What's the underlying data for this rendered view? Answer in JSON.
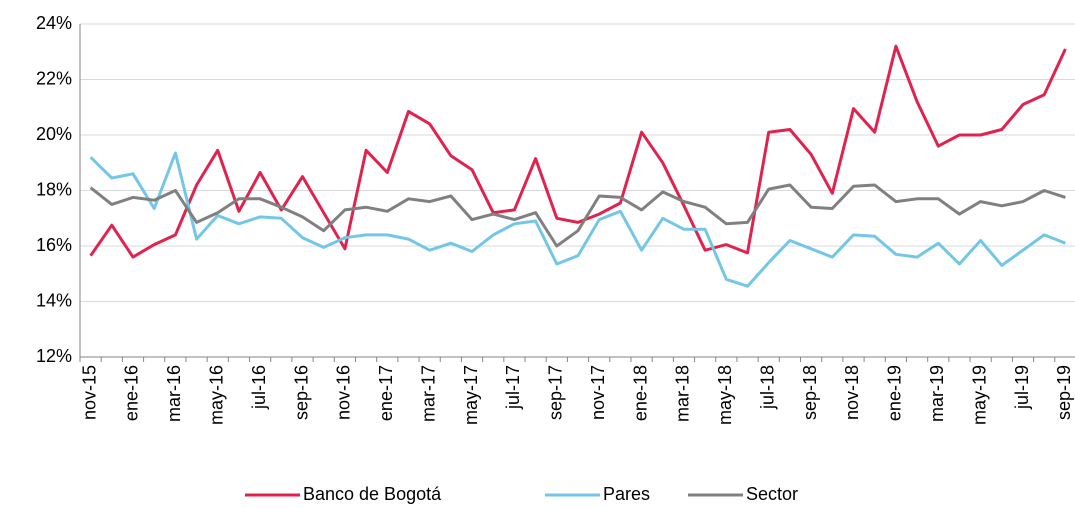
{
  "chart_data": {
    "type": "line",
    "categories": [
      "nov-15",
      null,
      "ene-16",
      null,
      "mar-16",
      null,
      "may-16",
      null,
      "jul-16",
      null,
      "sep-16",
      null,
      "nov-16",
      null,
      "ene-17",
      null,
      "mar-17",
      null,
      "may-17",
      null,
      "jul-17",
      null,
      "sep-17",
      null,
      "nov-17",
      null,
      "ene-18",
      null,
      "mar-18",
      null,
      "may-18",
      null,
      "jul-18",
      null,
      "sep-18",
      null,
      "nov-18",
      null,
      "ene-19",
      null,
      "mar-19",
      null,
      "may-19",
      null,
      "jul-19",
      null,
      "sep-19"
    ],
    "series": [
      {
        "name": "Banco de Bogotá",
        "color": "#e0234e",
        "values": [
          15.65,
          16.75,
          15.6,
          16.05,
          16.4,
          18.2,
          19.45,
          17.25,
          18.65,
          17.3,
          18.5,
          17.2,
          15.9,
          19.45,
          18.65,
          20.85,
          20.4,
          19.25,
          18.75,
          17.2,
          17.3,
          19.15,
          17.0,
          16.85,
          17.15,
          17.55,
          20.1,
          19.0,
          17.45,
          15.85,
          16.05,
          15.75,
          20.1,
          20.2,
          19.3,
          17.9,
          20.95,
          20.1,
          23.2,
          21.2,
          19.6,
          20.0,
          20.0,
          20.2,
          21.1,
          21.45,
          23.1
        ]
      },
      {
        "name": "Pares",
        "color": "#72c7e7",
        "values": [
          19.2,
          18.45,
          18.6,
          17.35,
          19.35,
          16.25,
          17.1,
          16.8,
          17.05,
          17.0,
          16.3,
          15.95,
          16.3,
          16.4,
          16.4,
          16.25,
          15.85,
          16.1,
          15.8,
          16.4,
          16.8,
          16.9,
          15.35,
          15.65,
          16.95,
          17.25,
          15.85,
          17.0,
          16.6,
          16.6,
          14.8,
          14.55,
          15.4,
          16.2,
          15.9,
          15.6,
          16.4,
          16.35,
          15.7,
          15.6,
          16.1,
          15.35,
          16.2,
          15.3,
          15.85,
          16.4,
          16.1
        ]
      },
      {
        "name": "Sector",
        "color": "#808080",
        "values": [
          18.1,
          17.5,
          17.75,
          17.65,
          18.0,
          16.85,
          17.2,
          17.7,
          17.7,
          17.4,
          17.05,
          16.55,
          17.3,
          17.4,
          17.25,
          17.7,
          17.6,
          17.8,
          16.95,
          17.15,
          16.95,
          17.2,
          16.0,
          16.55,
          17.8,
          17.75,
          17.3,
          17.95,
          17.6,
          17.4,
          16.8,
          16.85,
          18.05,
          18.2,
          17.4,
          17.35,
          18.15,
          18.2,
          17.6,
          17.7,
          17.7,
          17.15,
          17.6,
          17.45,
          17.6,
          18.0,
          17.75
        ]
      }
    ],
    "ylim": [
      12,
      24
    ],
    "yticks": [
      {
        "value": 12,
        "label": "12%"
      },
      {
        "value": 14,
        "label": "14%"
      },
      {
        "value": 16,
        "label": "16%"
      },
      {
        "value": 18,
        "label": "18%"
      },
      {
        "value": 20,
        "label": "20%"
      },
      {
        "value": 22,
        "label": "22%"
      },
      {
        "value": 24,
        "label": "24%"
      }
    ],
    "grid": true,
    "legend": "bottom"
  }
}
